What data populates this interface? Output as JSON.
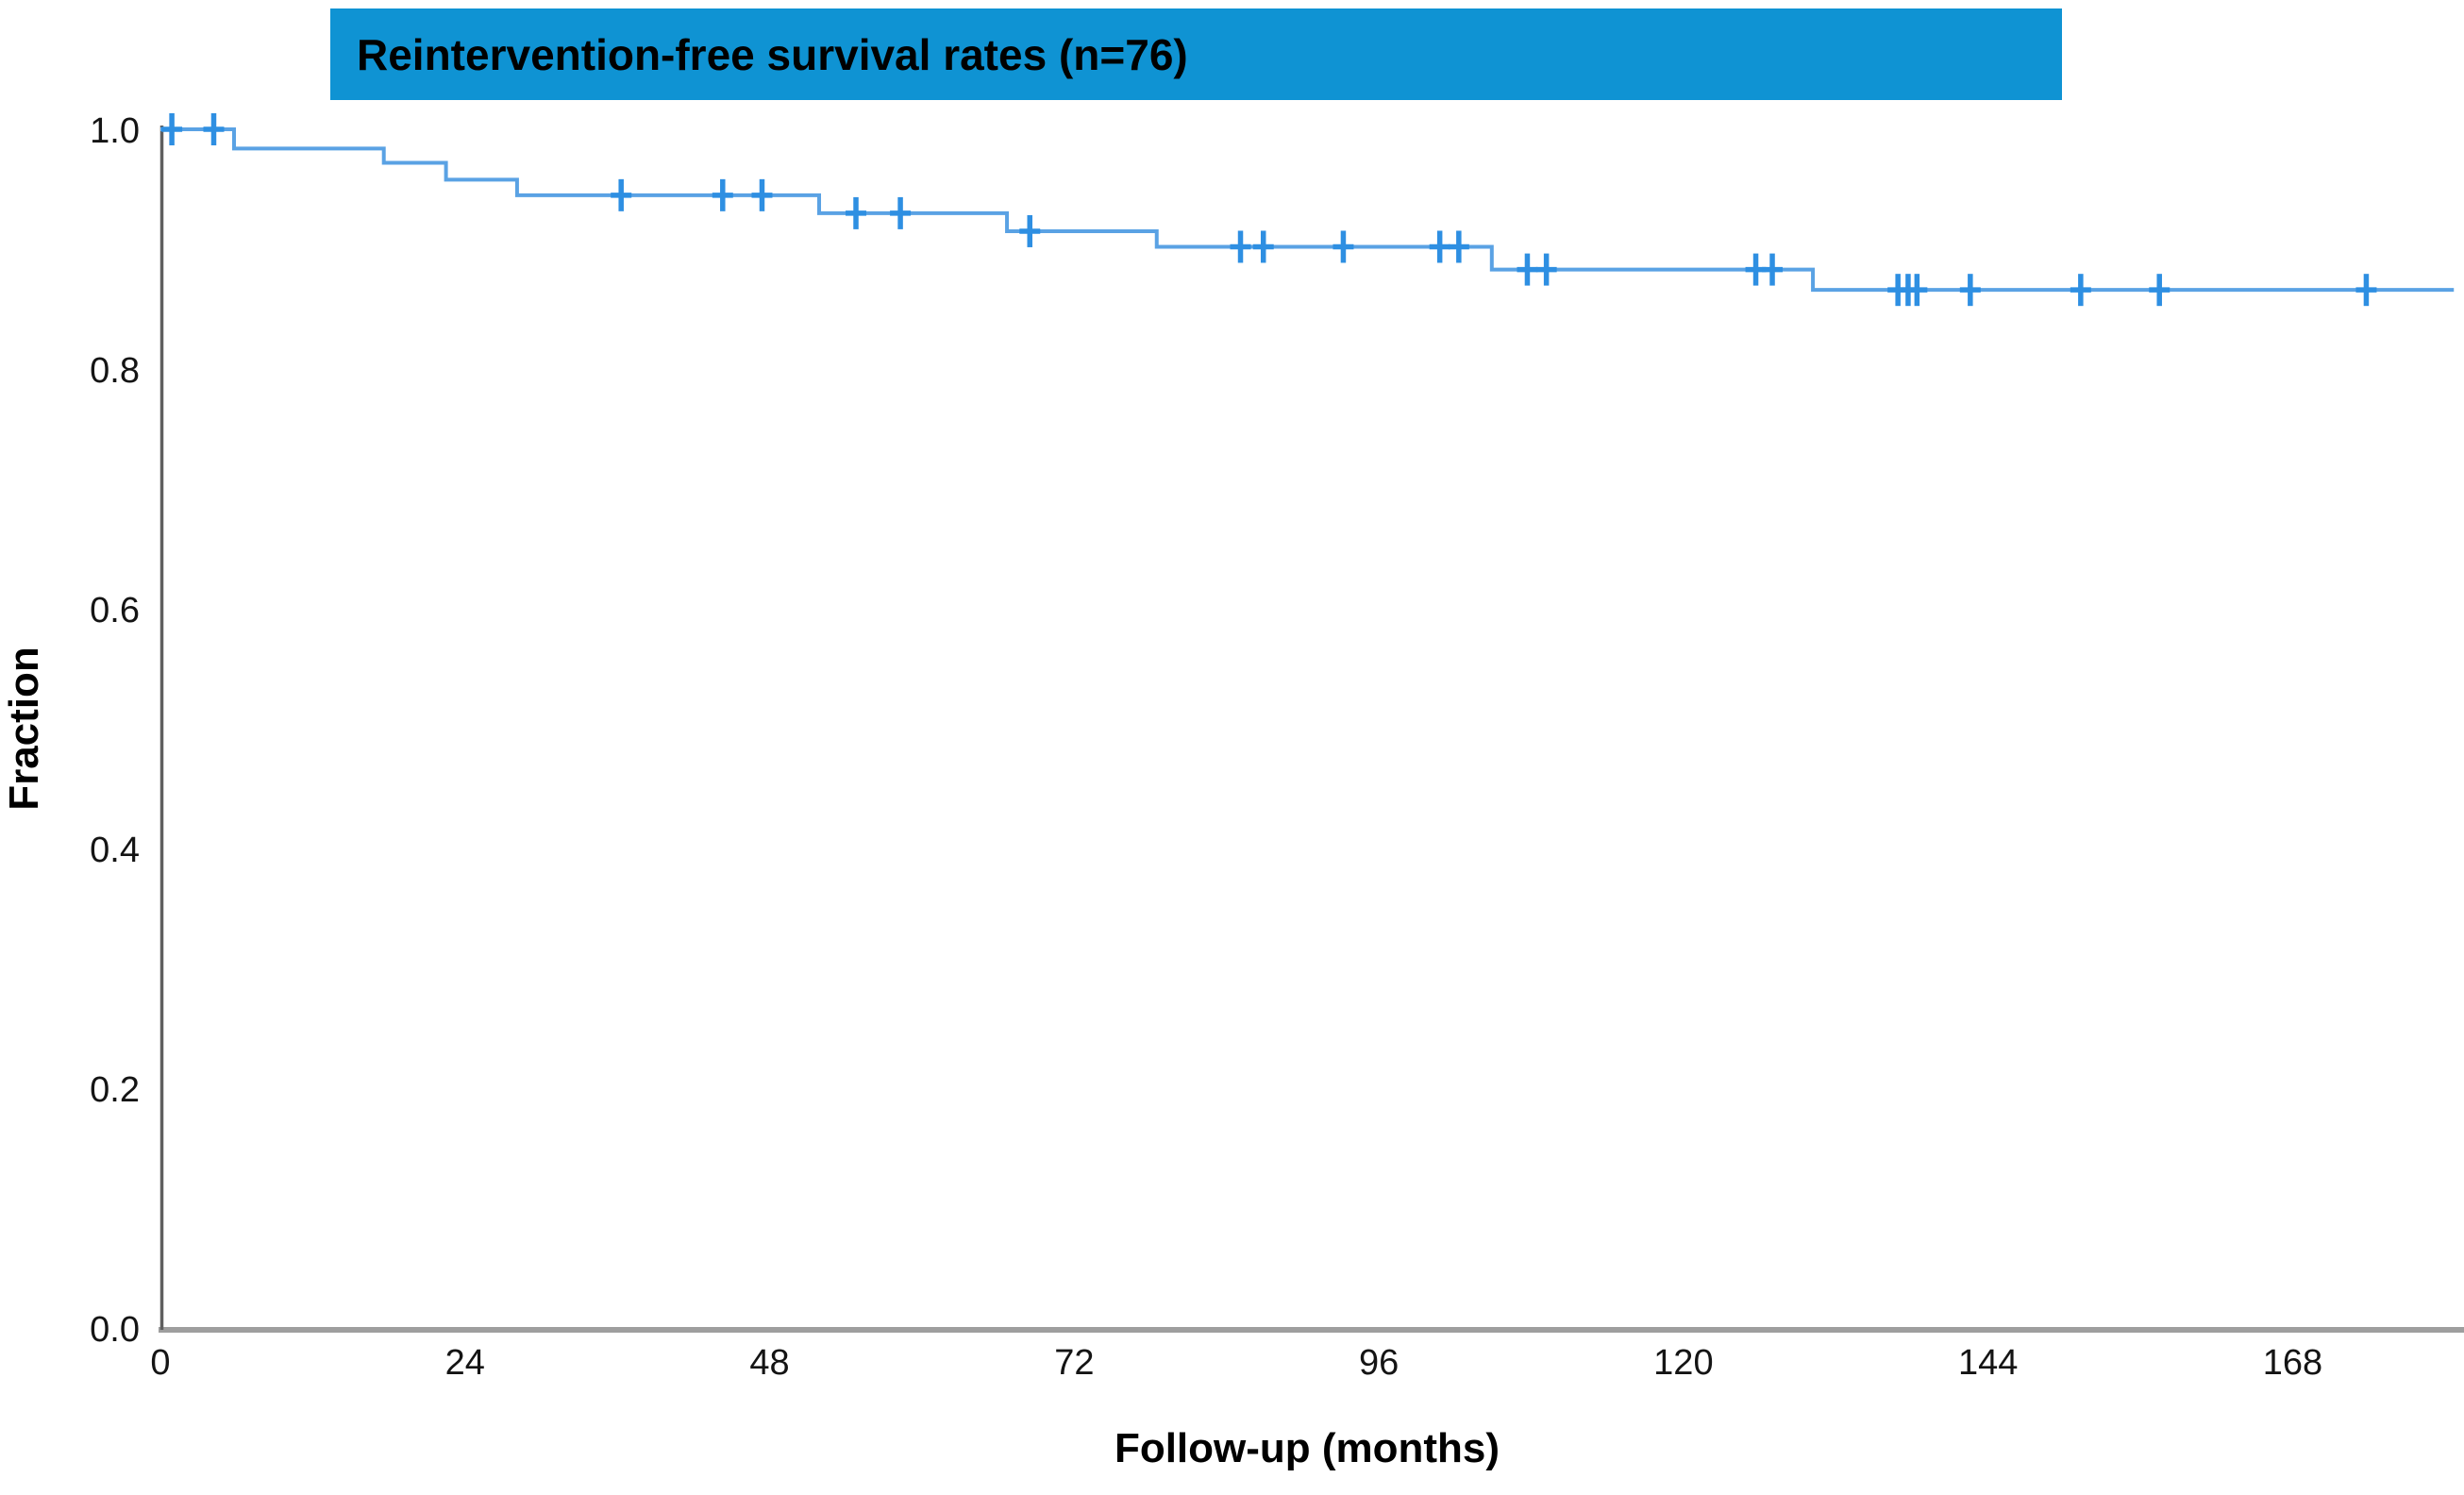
{
  "title": {
    "text": "Reintervention-free survival rates (n=76)"
  },
  "colors": {
    "banner": "#0f93d3",
    "curve": "#5aa2e4",
    "censor": "#2e8fe2",
    "x_axis_line": "#9e9e9e",
    "y_axis_line": "#5f5f5f",
    "tick_text": "#141414"
  },
  "chart_data": {
    "type": "line",
    "subtype": "kaplan-meier-step",
    "title": "Reintervention-free survival rates (n=76)",
    "n": 76,
    "xlabel": "Follow-up (months)",
    "ylabel": "Fraction",
    "xlim": [
      0,
      181.5
    ],
    "ylim": [
      0.0,
      1.0
    ],
    "x_ticks": [
      0,
      24,
      48,
      72,
      96,
      120,
      144,
      168
    ],
    "y_ticks": [
      "1.0",
      "0.8",
      "0.6",
      "0.4",
      "0.2",
      "0.0"
    ],
    "y_tick_values": [
      1.0,
      0.8,
      0.6,
      0.4,
      0.2,
      0.0
    ],
    "grid": false,
    "legend": false,
    "series": [
      {
        "name": "Reintervention-free survival",
        "start": {
          "t": 0,
          "s": 1.0
        },
        "steps": [
          {
            "t": 5.8,
            "s": 0.984
          },
          {
            "t": 17.6,
            "s": 0.972
          },
          {
            "t": 22.5,
            "s": 0.958
          },
          {
            "t": 28.1,
            "s": 0.945
          },
          {
            "t": 51.9,
            "s": 0.93
          },
          {
            "t": 66.7,
            "s": 0.915
          },
          {
            "t": 78.5,
            "s": 0.902
          },
          {
            "t": 104.9,
            "s": 0.883
          },
          {
            "t": 130.2,
            "s": 0.866
          }
        ],
        "end_t": 180.7
      }
    ],
    "censor_marks": [
      {
        "t": 0.9,
        "s": 1.0
      },
      {
        "t": 4.2,
        "s": 1.0
      },
      {
        "t": 36.3,
        "s": 0.945
      },
      {
        "t": 44.3,
        "s": 0.945
      },
      {
        "t": 47.4,
        "s": 0.945
      },
      {
        "t": 54.8,
        "s": 0.93
      },
      {
        "t": 58.3,
        "s": 0.93
      },
      {
        "t": 68.5,
        "s": 0.915
      },
      {
        "t": 85.1,
        "s": 0.902
      },
      {
        "t": 86.9,
        "s": 0.902
      },
      {
        "t": 93.2,
        "s": 0.902
      },
      {
        "t": 100.8,
        "s": 0.902
      },
      {
        "t": 102.3,
        "s": 0.902
      },
      {
        "t": 107.7,
        "s": 0.883
      },
      {
        "t": 109.2,
        "s": 0.883
      },
      {
        "t": 125.7,
        "s": 0.883
      },
      {
        "t": 127.0,
        "s": 0.883
      },
      {
        "t": 136.9,
        "s": 0.866
      },
      {
        "t": 137.7,
        "s": 0.866
      },
      {
        "t": 138.4,
        "s": 0.866
      },
      {
        "t": 142.6,
        "s": 0.866
      },
      {
        "t": 151.3,
        "s": 0.866
      },
      {
        "t": 157.5,
        "s": 0.866
      },
      {
        "t": 173.8,
        "s": 0.866
      }
    ]
  }
}
